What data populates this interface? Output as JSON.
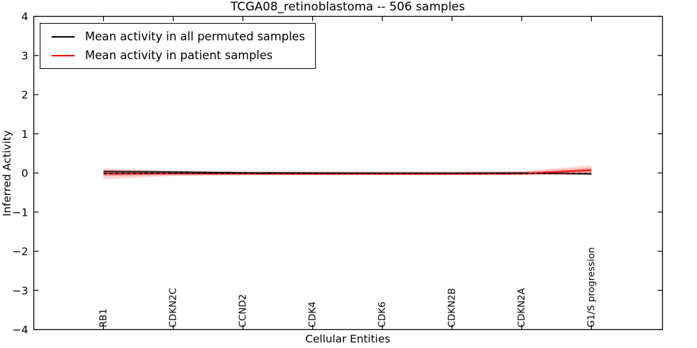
{
  "chart_data": {
    "type": "line",
    "title": "TCGA08_retinoblastoma -- 506 samples",
    "xlabel": "Cellular Entities",
    "ylabel": "Inferred Activity",
    "ylim": [
      -4,
      4
    ],
    "yticks": [
      -4,
      -3,
      -2,
      -1,
      0,
      1,
      2,
      3,
      4
    ],
    "ytick_labels": [
      "−4",
      "−3",
      "−2",
      "−1",
      "0",
      "1",
      "2",
      "3",
      "4"
    ],
    "categories": [
      "RB1",
      "CDKN2C",
      "CCND2",
      "CDK4",
      "CDK6",
      "CDKN2B",
      "CDKN2A",
      "G1/S progression"
    ],
    "grid": false,
    "legend_position": "upper left",
    "axis_color": "#000000",
    "background_color": "#ffffff",
    "series": [
      {
        "name": "Mean activity in all permuted samples",
        "color": "#000000",
        "style": "solid",
        "width": 1.5,
        "values": [
          0.035,
          0.025,
          0.005,
          0.0,
          -0.005,
          -0.005,
          0.0,
          -0.025
        ]
      },
      {
        "name": "Mean activity in patient samples",
        "color": "#ff0000",
        "style": "solid",
        "width": 1.8,
        "values": [
          -0.02,
          -0.015,
          -0.02,
          -0.025,
          -0.025,
          -0.025,
          -0.02,
          0.07
        ]
      },
      {
        "name": "dashed overlay line",
        "color": "#000000",
        "style": "dashed",
        "width": 1.6,
        "values": [
          -0.012,
          -0.012,
          -0.015,
          -0.015,
          -0.015,
          -0.015,
          -0.015,
          -0.015
        ]
      }
    ],
    "bands": [
      {
        "name": "patient samples spread outer",
        "color": "rgba(255,70,70,0.22)",
        "upper": [
          0.115,
          0.06,
          0.045,
          0.04,
          0.04,
          0.04,
          0.045,
          0.195
        ],
        "lower": [
          -0.16,
          -0.08,
          -0.07,
          -0.065,
          -0.065,
          -0.065,
          -0.065,
          -0.05
        ]
      },
      {
        "name": "patient samples spread inner",
        "color": "rgba(255,30,30,0.32)",
        "upper": [
          0.07,
          0.04,
          0.025,
          0.02,
          0.02,
          0.02,
          0.025,
          0.13
        ],
        "lower": [
          -0.08,
          -0.055,
          -0.045,
          -0.045,
          -0.045,
          -0.045,
          -0.045,
          -0.02
        ]
      },
      {
        "name": "permuted samples spread",
        "color": "rgba(70,70,70,0.25)",
        "upper": [
          0.08,
          0.05,
          0.025,
          0.02,
          0.02,
          0.02,
          0.025,
          0.01
        ],
        "lower": [
          -0.03,
          -0.02,
          -0.02,
          -0.02,
          -0.02,
          -0.02,
          -0.02,
          -0.05
        ]
      }
    ]
  }
}
